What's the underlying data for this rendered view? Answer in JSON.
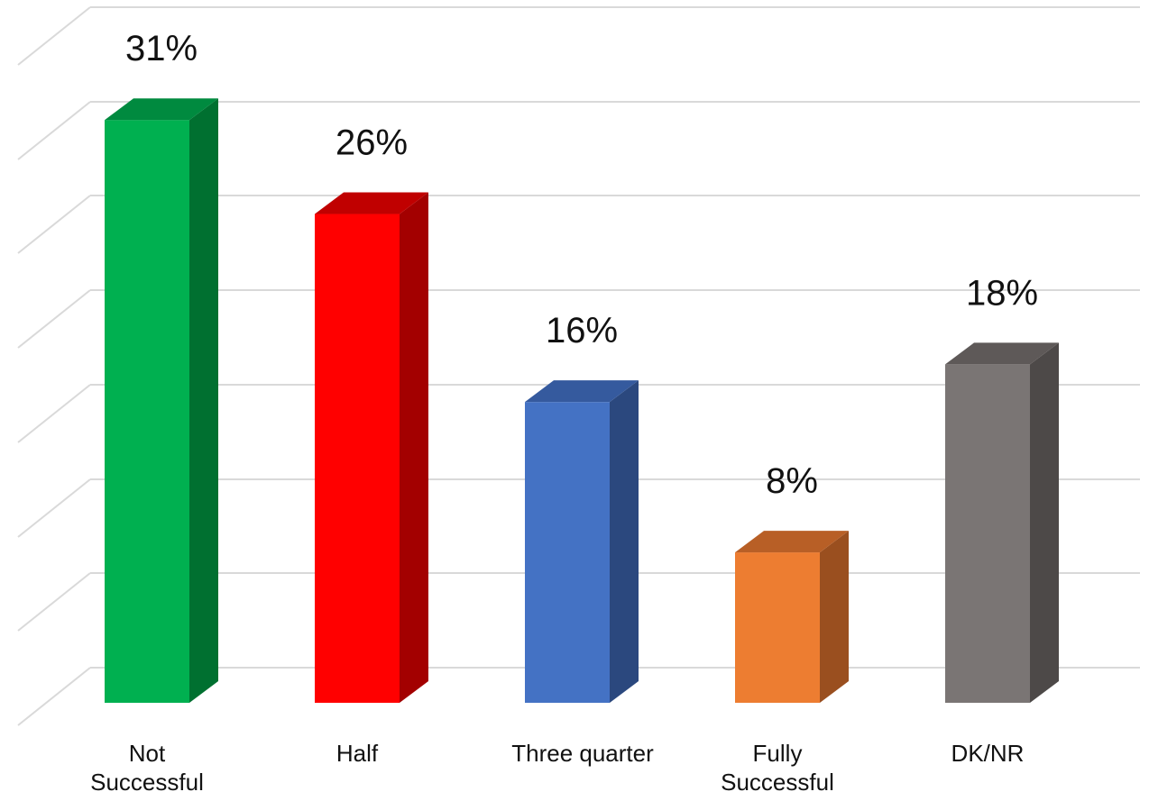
{
  "chart_data": {
    "type": "bar",
    "categories": [
      "Not\nSuccessful",
      "Half",
      "Three quarter",
      "Fully\nSuccessful",
      "DK/NR"
    ],
    "values": [
      31,
      26,
      16,
      8,
      18
    ],
    "data_labels": [
      "31%",
      "26%",
      "16%",
      "8%",
      "18%"
    ],
    "ylim": [
      0,
      37
    ],
    "grid": true,
    "colors": {
      "front": [
        "#00b050",
        "#ff0000",
        "#4472c4",
        "#ed7d31",
        "#7a7574"
      ],
      "side": [
        "#007030",
        "#a30000",
        "#2b487e",
        "#9a4f1f",
        "#4d4948"
      ],
      "top": [
        "#008a3f",
        "#c00000",
        "#355a9e",
        "#b85f26",
        "#5e5958"
      ]
    }
  }
}
